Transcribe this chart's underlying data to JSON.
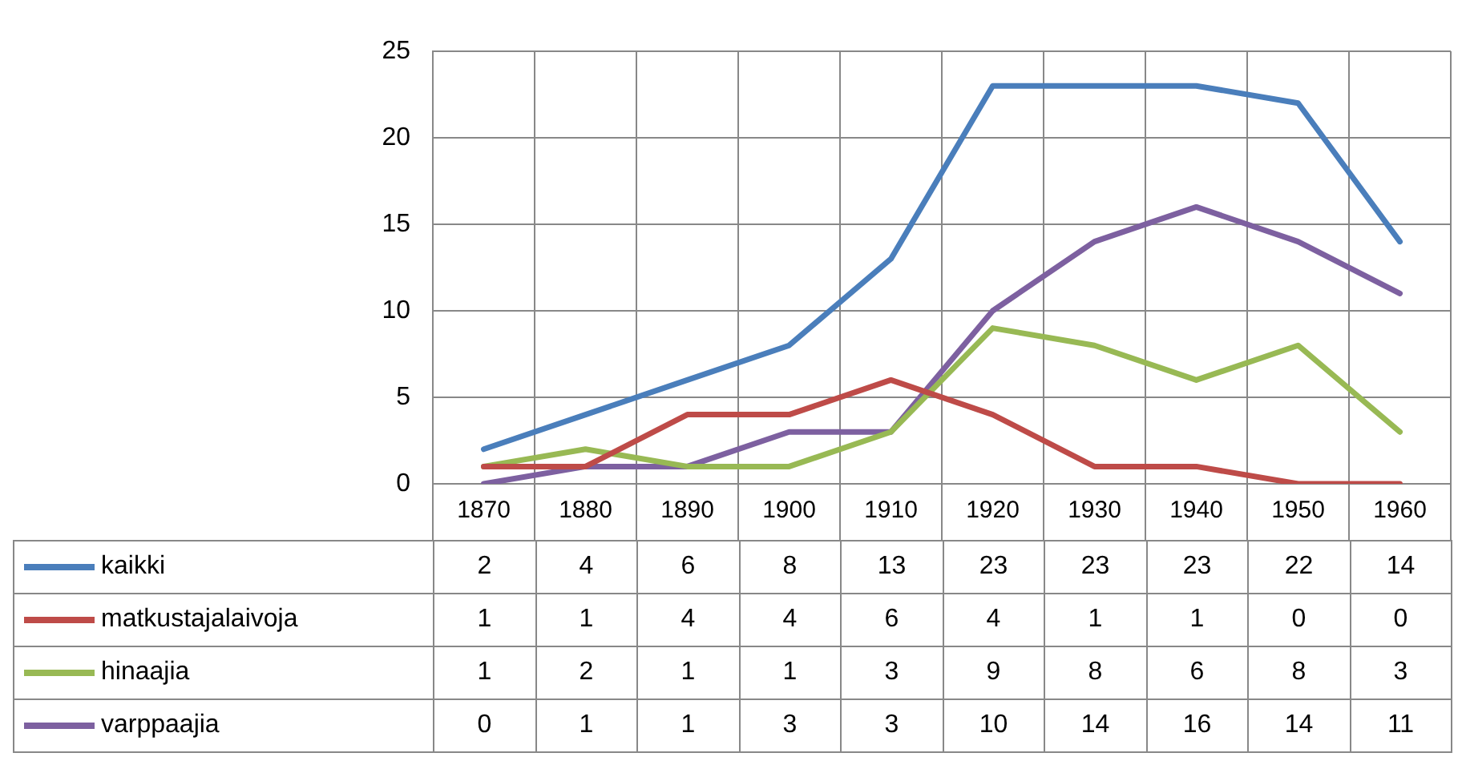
{
  "chart_data": {
    "type": "line",
    "categories": [
      "1870",
      "1880",
      "1890",
      "1900",
      "1910",
      "1920",
      "1930",
      "1940",
      "1950",
      "1960"
    ],
    "series": [
      {
        "name": "kaikki",
        "color": "#4a7ebb",
        "values": [
          2,
          4,
          6,
          8,
          13,
          23,
          23,
          23,
          22,
          14
        ]
      },
      {
        "name": "matkustajalaivoja",
        "color": "#be4b48",
        "values": [
          1,
          1,
          4,
          4,
          6,
          4,
          1,
          1,
          0,
          0
        ]
      },
      {
        "name": "hinaajia",
        "color": "#98b954",
        "values": [
          1,
          2,
          1,
          1,
          3,
          9,
          8,
          6,
          8,
          3
        ]
      },
      {
        "name": "varppaajia",
        "color": "#7d60a0",
        "values": [
          0,
          1,
          1,
          3,
          3,
          10,
          14,
          16,
          14,
          11
        ]
      }
    ],
    "ylim": [
      0,
      25
    ],
    "yticks": [
      0,
      5,
      10,
      15,
      20,
      25
    ],
    "grid": true,
    "legend": "bottom",
    "data_labels": true,
    "marker": "none",
    "line_style": "solid"
  }
}
